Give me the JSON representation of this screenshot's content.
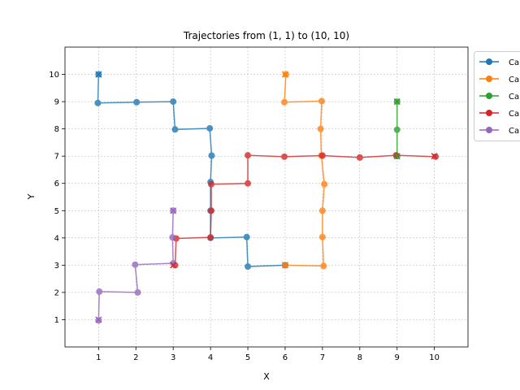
{
  "chart_data": {
    "type": "line",
    "title": "Trajectories from (1, 1) to (10, 10)",
    "xlabel": "X",
    "ylabel": "Y",
    "xlim": [
      0.1,
      10.9
    ],
    "ylim": [
      0.0,
      11.0
    ],
    "xticks": [
      "1",
      "2",
      "3",
      "4",
      "5",
      "6",
      "7",
      "8",
      "9",
      "10"
    ],
    "yticks": [
      "1",
      "2",
      "3",
      "4",
      "5",
      "6",
      "7",
      "8",
      "9",
      "10"
    ],
    "grid": true,
    "legend_position": "outside-top-right",
    "legend_labels_visible": [
      "Ca",
      "Ca",
      "Ca",
      "Ca",
      "Ca"
    ],
    "series": [
      {
        "color": "#1f77b4",
        "points": [
          [
            6.0,
            3.0
          ],
          [
            5.0,
            2.95
          ],
          [
            4.97,
            4.03
          ],
          [
            4.0,
            4.0
          ],
          [
            4.0,
            5.0
          ],
          [
            4.0,
            6.05
          ],
          [
            4.03,
            7.02
          ],
          [
            3.98,
            8.02
          ],
          [
            3.05,
            7.98
          ],
          [
            3.0,
            9.0
          ],
          [
            2.02,
            8.98
          ],
          [
            0.98,
            8.95
          ],
          [
            1.0,
            10.0
          ]
        ],
        "start_marker": [
          6.0,
          3.0
        ],
        "end_marker": [
          1.0,
          10.0
        ]
      },
      {
        "color": "#ff7f0e",
        "points": [
          [
            6.0,
            3.0
          ],
          [
            7.03,
            2.97
          ],
          [
            7.0,
            4.03
          ],
          [
            7.0,
            5.0
          ],
          [
            7.05,
            5.97
          ],
          [
            6.97,
            7.02
          ],
          [
            6.95,
            8.0
          ],
          [
            6.98,
            9.02
          ],
          [
            5.98,
            8.98
          ],
          [
            6.02,
            10.0
          ]
        ],
        "start_marker": [
          6.0,
          3.0
        ],
        "end_marker": [
          6.0,
          10.0
        ]
      },
      {
        "color": "#2ca02c",
        "points": [
          [
            9.0,
            7.0
          ],
          [
            9.0,
            7.97
          ],
          [
            9.0,
            9.0
          ]
        ],
        "start_marker": [
          9.0,
          7.0
        ],
        "end_marker": [
          9.0,
          9.0
        ]
      },
      {
        "color": "#d62728",
        "points": [
          [
            3.05,
            3.0
          ],
          [
            3.08,
            3.98
          ],
          [
            4.0,
            4.02
          ],
          [
            4.02,
            5.0
          ],
          [
            4.02,
            5.97
          ],
          [
            5.0,
            6.0
          ],
          [
            5.0,
            7.03
          ],
          [
            5.98,
            6.98
          ],
          [
            7.0,
            7.02
          ],
          [
            8.0,
            6.95
          ],
          [
            8.97,
            7.03
          ],
          [
            10.03,
            6.98
          ]
        ],
        "start_marker": [
          3.0,
          3.0
        ],
        "end_marker": [
          10.0,
          7.0
        ]
      },
      {
        "color": "#9467bd",
        "points": [
          [
            1.0,
            0.97
          ],
          [
            1.02,
            2.03
          ],
          [
            2.05,
            2.0
          ],
          [
            1.98,
            3.02
          ],
          [
            3.0,
            3.07
          ],
          [
            2.98,
            4.02
          ],
          [
            3.0,
            5.0
          ]
        ],
        "start_marker": [
          1.0,
          1.0
        ],
        "end_marker": [
          3.0,
          5.0
        ]
      }
    ]
  }
}
